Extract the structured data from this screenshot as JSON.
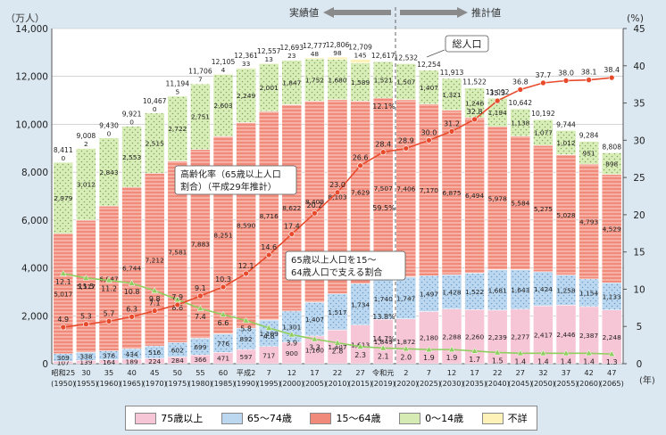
{
  "chart_data": {
    "type": "bar",
    "stacked": true,
    "y_left_unit": "（万人）",
    "y_right_unit": "(%)",
    "x_unit": "(年)",
    "ylim": [
      0,
      14000
    ],
    "yticks": [
      "0",
      "2,000",
      "4,000",
      "6,000",
      "8,000",
      "10,000",
      "12,000",
      "14,000"
    ],
    "y2lim": [
      0,
      45
    ],
    "y2ticks": [
      "0",
      "5",
      "10",
      "15",
      "20",
      "25",
      "30",
      "35",
      "40",
      "45"
    ],
    "categories_top": [
      "昭和25",
      "30",
      "35",
      "40",
      "45",
      "50",
      "55",
      "60",
      "平成2",
      "7",
      "12",
      "17",
      "22",
      "27",
      "令和元",
      "2",
      "7",
      "12",
      "17",
      "22",
      "27",
      "32",
      "37",
      "42",
      "47"
    ],
    "categories_bottom": [
      "(1950)",
      "(1955)",
      "(1960)",
      "(1965)",
      "(1970)",
      "(1975)",
      "(1980)",
      "(1985)",
      "(1990)",
      "(1995)",
      "(2000)",
      "(2005)",
      "(2010)",
      "(2015)",
      "(2019)",
      "(2020)",
      "(2025)",
      "(2030)",
      "(2035)",
      "(2040)",
      "(2045)",
      "(2050)",
      "(2055)",
      "(2060)",
      "(2065)"
    ],
    "series": [
      {
        "name": "75歳以上",
        "values": [
          107,
          139,
          164,
          189,
          224,
          284,
          366,
          471,
          597,
          717,
          900,
          1160,
          1407,
          1613,
          1849,
          1872,
          2180,
          2288,
          2260,
          2239,
          2277,
          2417,
          2446,
          2387,
          2248
        ],
        "labels": [
          "107",
          "139",
          "164",
          "189",
          "224",
          "284",
          "366",
          "471",
          "597",
          "717",
          "900",
          "1,160",
          "1,407",
          "1,613",
          "1,849",
          "1,872",
          "2,180",
          "2,288",
          "2,260",
          "2,239",
          "2,277",
          "2,417",
          "2,446",
          "2,387",
          "2,248"
        ]
      },
      {
        "name": "65～74歳",
        "values": [
          309,
          338,
          376,
          434,
          516,
          602,
          699,
          776,
          892,
          1109,
          1301,
          1407,
          1517,
          1734,
          1740,
          1747,
          1497,
          1428,
          1522,
          1681,
          1643,
          1424,
          1258,
          1154,
          1133
        ],
        "labels": [
          "309",
          "338",
          "376",
          "434",
          "516",
          "602",
          "699",
          "776",
          "892",
          "1,109",
          "1,301",
          "1,407",
          "1,517",
          "1,734",
          "1,740",
          "1,747",
          "1,497",
          "1,428",
          "1,522",
          "1,681",
          "1,643",
          "1,424",
          "1,258",
          "1,154",
          "1,133"
        ]
      },
      {
        "name": "15～64歳",
        "values": [
          5017,
          5517,
          6047,
          6744,
          7212,
          7581,
          7883,
          8251,
          8590,
          8716,
          8622,
          8409,
          8103,
          7629,
          7507,
          7406,
          7170,
          6875,
          6494,
          5978,
          5584,
          5275,
          5028,
          4793,
          4529
        ],
        "labels": [
          "5,017",
          "5,517",
          "6,047",
          "6,744",
          "7,212",
          "7,581",
          "7,883",
          "8,251",
          "8,590",
          "8,716",
          "8,622",
          "8,409",
          "8,103",
          "7,629",
          "7,507",
          "7,406",
          "7,170",
          "6,875",
          "6,494",
          "5,978",
          "5,584",
          "5,275",
          "5,028",
          "4,793",
          "4,529"
        ]
      },
      {
        "name": "0～14歳",
        "values": [
          2979,
          3012,
          2843,
          2553,
          2515,
          2722,
          2751,
          2603,
          2249,
          2001,
          1847,
          1752,
          1680,
          1589,
          1521,
          1507,
          1407,
          1321,
          1246,
          1194,
          1138,
          1077,
          1012,
          951,
          898
        ],
        "labels": [
          "2,979",
          "3,012",
          "2,843",
          "2,553",
          "2,515",
          "2,722",
          "2,751",
          "2,603",
          "2,249",
          "2,001",
          "1,847",
          "1,752",
          "1,680",
          "1,589",
          "1,521",
          "1,507",
          "1,407",
          "1,321",
          "1,246",
          "1,194",
          "1,138",
          "1,077",
          "1,012",
          "951",
          "898"
        ]
      },
      {
        "name": "不詳",
        "values": [
          0,
          2,
          0,
          0,
          0,
          5,
          7,
          4,
          33,
          13,
          23,
          48,
          98,
          145,
          0,
          0,
          0,
          0,
          0,
          0,
          0,
          0,
          0,
          0,
          0
        ],
        "labels": [
          "0",
          "2",
          "0",
          "0",
          "0",
          "5",
          "7",
          "4",
          "33",
          "13",
          "23",
          "48",
          "98",
          "145",
          "",
          "",
          "",
          "",
          "",
          "",
          "",
          "",
          "",
          "",
          ""
        ]
      }
    ],
    "totals": [
      "8,411",
      "9,008",
      "9,430",
      "9,921",
      "10,467",
      "11,194",
      "11,706",
      "12,105",
      "12,361",
      "12,557",
      "12,693",
      "12,777",
      "12,806",
      "12,709",
      "12,617",
      "12,532",
      "12,254",
      "11,913",
      "11,522",
      "11,092",
      "10,642",
      "10,192",
      "9,744",
      "9,284",
      "8,808"
    ],
    "line_aging_rate": {
      "name": "高齢化率（65歳以上人口割合）（平成29年推計）",
      "values": [
        4.9,
        5.3,
        5.7,
        6.3,
        7.1,
        7.9,
        9.1,
        10.3,
        12.1,
        14.6,
        17.4,
        20.2,
        23.0,
        26.6,
        28.4,
        28.9,
        30.0,
        31.2,
        32.8,
        35.3,
        36.8,
        37.7,
        38.0,
        38.1,
        38.4
      ],
      "labels": [
        "4.9",
        "5.3",
        "5.7",
        "6.3",
        "7.1",
        "7.9",
        "9.1",
        "10.3",
        "12.1",
        "14.6",
        "17.4",
        "20.2",
        "23.0",
        "26.6",
        "28.4",
        "28.9",
        "30.0",
        "31.2",
        "32.8",
        "35.3",
        "36.8",
        "37.7",
        "38.0",
        "38.1",
        "38.4"
      ]
    },
    "line_support_ratio": {
      "name": "65歳以上人口を15～64歳人口で支える割合",
      "values": [
        12.1,
        11.5,
        11.2,
        10.8,
        9.8,
        8.6,
        7.4,
        6.6,
        5.8,
        4.8,
        3.9,
        3.3,
        2.8,
        2.3,
        2.1,
        2.0,
        1.9,
        1.9,
        1.7,
        1.5,
        1.4,
        1.4,
        1.4,
        1.4,
        1.3
      ],
      "labels": [
        "12.1",
        "11.5",
        "11.2",
        "10.8",
        "9.8",
        "8.6",
        "7.4",
        "6.6",
        "5.8",
        "4.8",
        "3.9",
        "3.3",
        "2.8",
        "2.3",
        "2.1",
        "2.0",
        "1.9",
        "1.9",
        "1.7",
        "1.5",
        "1.4",
        "1.4",
        "1.4",
        "1.4",
        "1.3"
      ]
    },
    "annotations": {
      "actual": "実績値",
      "estimate": "推計値",
      "total_population": "総人口",
      "aging_rate_line1": "高齢化率（65歳以上人口",
      "aging_rate_line2": "割合）（平成29年推計）",
      "support_line1": "65歳以上人口を15～",
      "support_line2": "64歳人口で支える割合",
      "ratio_2019_1": "59.5%",
      "ratio_2019_2": "13.8%",
      "ratio_2019_3": "14.7%",
      "ratio_2019_4": "12.1%"
    },
    "legend_position": "bottom",
    "colors": {
      "75plus": "#f7c6d6",
      "65to74": "#bcd8f0",
      "15to64": "#f08b7b",
      "0to14": "#d6ebb4",
      "unknown": "#fff2b8",
      "aging_line": "#e84a2c",
      "support_line": "#8fcf5f",
      "arrow": "#888888"
    }
  }
}
